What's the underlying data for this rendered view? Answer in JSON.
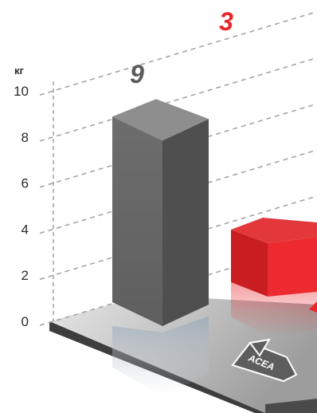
{
  "chart_data": {
    "type": "bar",
    "unit": "кг",
    "yticks": [
      "0",
      "2",
      "4",
      "6",
      "8",
      "10"
    ],
    "ylim": [
      0,
      10
    ],
    "grid": true,
    "series": [
      {
        "values": [
          9
        ],
        "color": "#6e6e6e",
        "label": "9",
        "label_color": "#5a5a5a"
      },
      {
        "values": [
          3
        ],
        "color": "#e8262b",
        "label": "3",
        "label_color": "#e8262b"
      }
    ],
    "badge": "ACEA"
  }
}
